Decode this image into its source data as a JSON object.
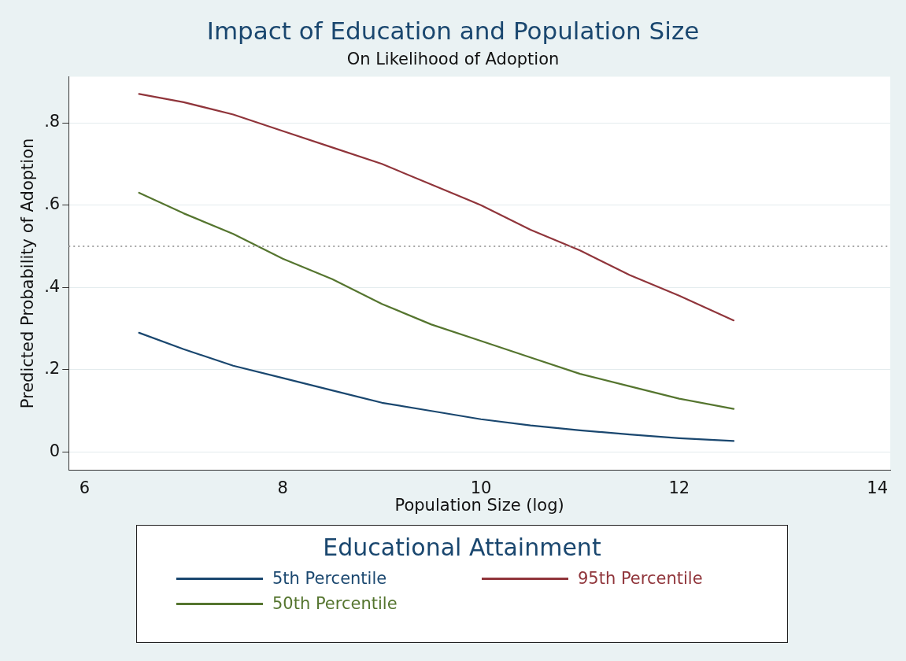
{
  "chart_data": {
    "type": "line",
    "title": "Impact of Education and Population Size",
    "subtitle": "On Likelihood of Adoption",
    "xlabel": "Population Size (log)",
    "ylabel": "Predicted Probability of Adoption",
    "legend_title": "Educational Attainment",
    "x": [
      6.55,
      7,
      7.5,
      8,
      8.5,
      9,
      9.5,
      10,
      10.5,
      11,
      11.5,
      12,
      12.55
    ],
    "series": [
      {
        "name": "5th Percentile",
        "color": "#1a476f",
        "values": [
          0.29,
          0.25,
          0.21,
          0.18,
          0.15,
          0.12,
          0.1,
          0.08,
          0.065,
          0.053,
          0.043,
          0.034,
          0.027
        ]
      },
      {
        "name": "95th Percentile",
        "color": "#90353b",
        "values": [
          0.87,
          0.85,
          0.82,
          0.78,
          0.74,
          0.7,
          0.65,
          0.6,
          0.54,
          0.49,
          0.43,
          0.38,
          0.32
        ]
      },
      {
        "name": "50th Percentile",
        "color": "#55752f",
        "values": [
          0.63,
          0.58,
          0.53,
          0.47,
          0.42,
          0.36,
          0.31,
          0.27,
          0.23,
          0.19,
          0.16,
          0.13,
          0.105
        ]
      }
    ],
    "xlim": [
      5.84,
      14.13
    ],
    "xticks": [
      6,
      8,
      10,
      12,
      14
    ],
    "ylim": [
      -0.044,
      0.912
    ],
    "yticks": [
      {
        "value": 0,
        "label": "0"
      },
      {
        "value": 0.2,
        "label": ".2"
      },
      {
        "value": 0.4,
        "label": ".4"
      },
      {
        "value": 0.6,
        "label": ".6"
      },
      {
        "value": 0.8,
        "label": ".8"
      }
    ],
    "ref_lines": [
      {
        "axis": "y",
        "value": 0.5,
        "color": "#888888",
        "line_style": "dotted"
      }
    ],
    "grid": "y",
    "legend": "bottom",
    "marker": "none",
    "line_style": "solid"
  }
}
